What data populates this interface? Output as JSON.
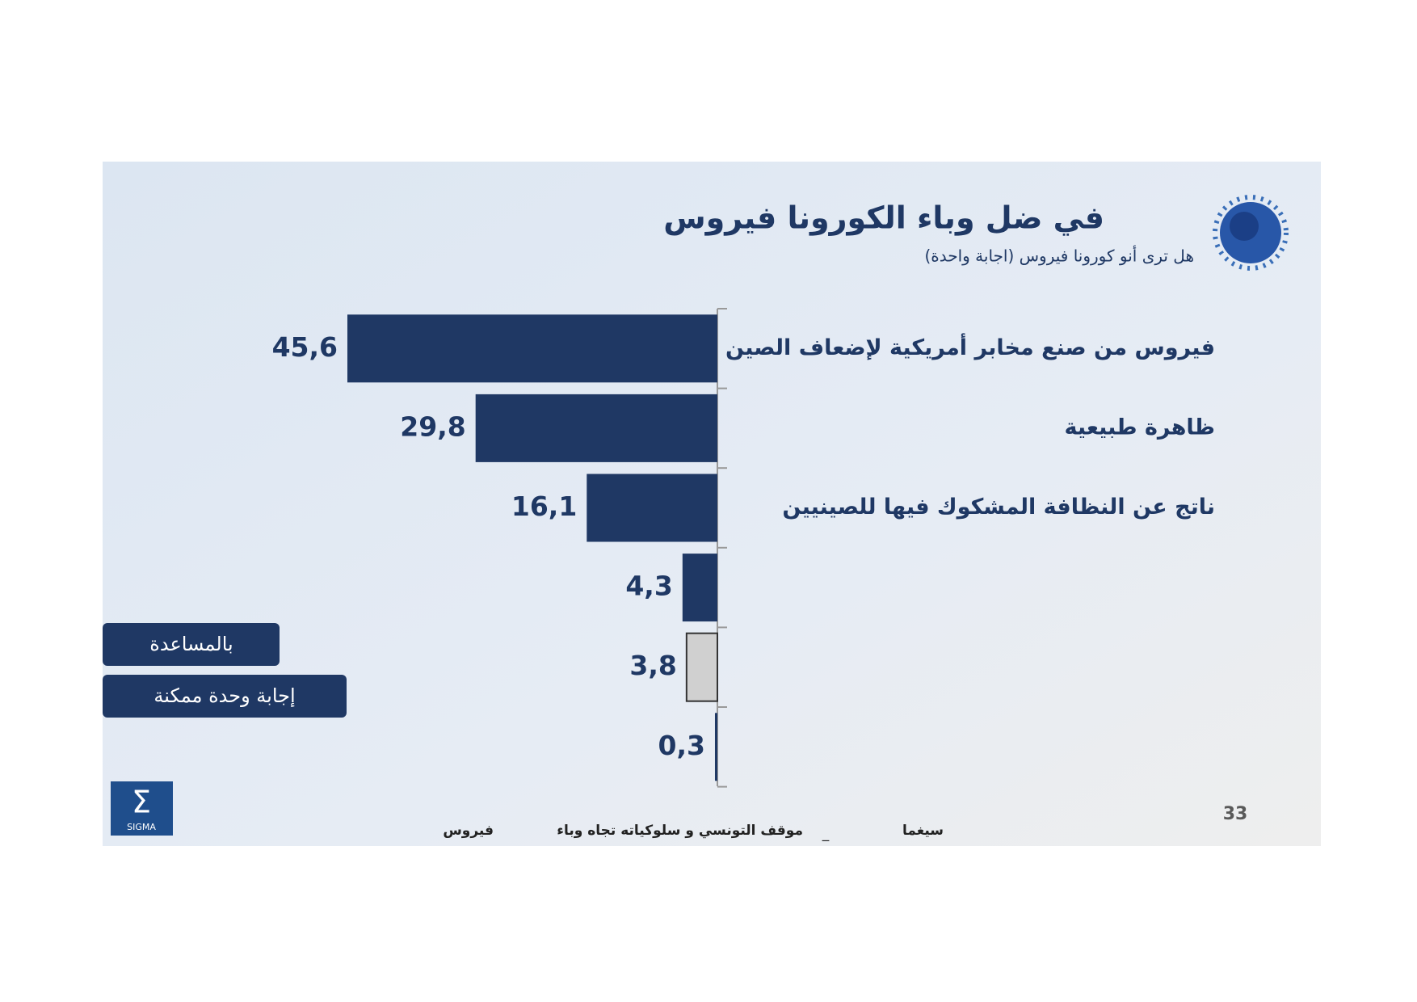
{
  "chart_data": {
    "type": "bar",
    "orientation": "horizontal",
    "title": "في ضل وباء الكورونا فيروس",
    "subtitle": "هل ترى أنو كورونا فيروس (اجابة واحدة)",
    "categories": [
      "فيروس من صنع مخابر أمريكية لإضعاف الصين",
      "ظاهرة طبيعية",
      "ناتج عن النظافة المشكوك فيها للصينيين",
      null,
      null,
      null
    ],
    "values": [
      45.6,
      29.8,
      16.1,
      4.3,
      3.8,
      0.3
    ],
    "value_labels": [
      "45,6",
      "29,8",
      "16,1",
      "4,3",
      "3,8",
      "0,3"
    ],
    "colors": [
      "#1f3864",
      "#1f3864",
      "#1f3864",
      "#1f3864",
      "#d0d0d0",
      "#1f3864"
    ],
    "annotations": [
      "بالمساعدة",
      "إجابة وحدة ممكنة"
    ],
    "footer": [
      "سيغما",
      "_",
      "موقف التونسي و سلوكياته تجاه وباء",
      "فيروس"
    ],
    "page_number": "33",
    "logo_text": "SIGMA"
  }
}
